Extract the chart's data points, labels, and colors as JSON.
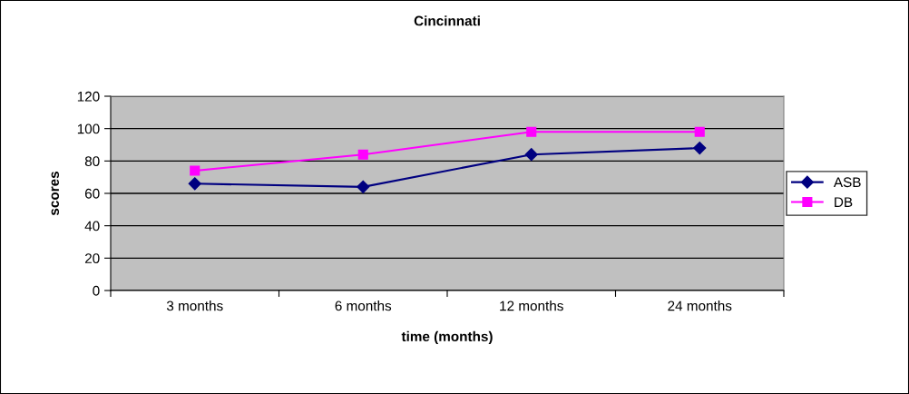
{
  "chart_data": {
    "type": "line",
    "title": "Cincinnati",
    "xlabel": "time (months)",
    "ylabel": "scores",
    "categories": [
      "3 months",
      "6 months",
      "12 months",
      "24 months"
    ],
    "series": [
      {
        "name": "ASB",
        "color": "#000080",
        "marker": "diamond",
        "values": [
          66,
          64,
          84,
          88
        ]
      },
      {
        "name": "DB",
        "color": "#ff00ff",
        "marker": "square",
        "values": [
          74,
          84,
          98,
          98
        ]
      }
    ],
    "ylim": [
      0,
      120
    ],
    "yticks": [
      0,
      20,
      40,
      60,
      80,
      100,
      120
    ],
    "grid": "y",
    "legend": "right",
    "line_style": "solid"
  }
}
